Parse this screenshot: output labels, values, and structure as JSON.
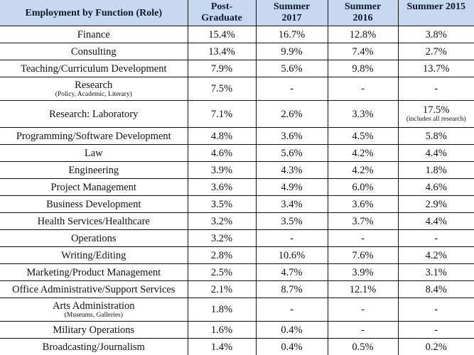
{
  "table": {
    "headers": {
      "role": "Employment by Function (Role)",
      "post_graduate_line1": "Post-",
      "post_graduate_line2": "Graduate",
      "summer2017_line1": "Summer",
      "summer2017_line2": "2017",
      "summer2016_line1": "Summer",
      "summer2016_line2": "2016",
      "summer2015": "Summer 2015"
    },
    "header_bg": "#c6d9f1",
    "rows": [
      {
        "role": "Finance",
        "post": "15.4%",
        "s2017": "16.7%",
        "s2016": "12.8%",
        "s2015": "3.8%"
      },
      {
        "role": "Consulting",
        "post": "13.4%",
        "s2017": "9.9%",
        "s2016": "7.4%",
        "s2015": "2.7%"
      },
      {
        "role": "Teaching/Curriculum Development",
        "post": "7.9%",
        "s2017": "5.6%",
        "s2016": "9.8%",
        "s2015": "13.7%"
      },
      {
        "role": "Research",
        "role_note": "(Policy, Academic, Literary)",
        "post": "7.5%",
        "s2017": "-",
        "s2016": "-",
        "s2015": "-"
      },
      {
        "role": "Research: Laboratory",
        "post": "7.1%",
        "s2017": "2.6%",
        "s2016": "3.3%",
        "s2015": "17.5%",
        "s2015_note": "(includes all research)"
      },
      {
        "role": "Programming/Software Development",
        "post": "4.8%",
        "s2017": "3.6%",
        "s2016": "4.5%",
        "s2015": "5.8%"
      },
      {
        "role": "Law",
        "post": "4.6%",
        "s2017": "5.6%",
        "s2016": "4.2%",
        "s2015": "4.4%"
      },
      {
        "role": "Engineering",
        "post": "3.9%",
        "s2017": "4.3%",
        "s2016": "4.2%",
        "s2015": "1.8%"
      },
      {
        "role": "Project Management",
        "post": "3.6%",
        "s2017": "4.9%",
        "s2016": "6.0%",
        "s2015": "4.6%"
      },
      {
        "role": "Business Development",
        "post": "3.5%",
        "s2017": "3.4%",
        "s2016": "3.6%",
        "s2015": "2.9%"
      },
      {
        "role": "Health Services/Healthcare",
        "post": "3.2%",
        "s2017": "3.5%",
        "s2016": "3.7%",
        "s2015": "4.4%"
      },
      {
        "role": "Operations",
        "post": "3.2%",
        "s2017": "-",
        "s2016": "-",
        "s2015": "-"
      },
      {
        "role": "Writing/Editing",
        "post": "2.8%",
        "s2017": "10.6%",
        "s2016": "7.6%",
        "s2015": "4.2%"
      },
      {
        "role": "Marketing/Product Management",
        "post": "2.5%",
        "s2017": "4.7%",
        "s2016": "3.9%",
        "s2015": "3.1%"
      },
      {
        "role": "Office Administrative/Support Services",
        "post": "2.1%",
        "s2017": "8.7%",
        "s2016": "12.1%",
        "s2015": "8.4%"
      },
      {
        "role": "Arts Administration",
        "role_note": "(Museums, Galleries)",
        "post": "1.8%",
        "s2017": "-",
        "s2016": "-",
        "s2015": "-"
      },
      {
        "role": "Military Operations",
        "post": "1.6%",
        "s2017": "0.4%",
        "s2016": "-",
        "s2015": "-"
      },
      {
        "role": "Broadcasting/Journalism",
        "post": "1.4%",
        "s2017": "0.4%",
        "s2016": "0.5%",
        "s2015": "0.2%"
      }
    ]
  }
}
